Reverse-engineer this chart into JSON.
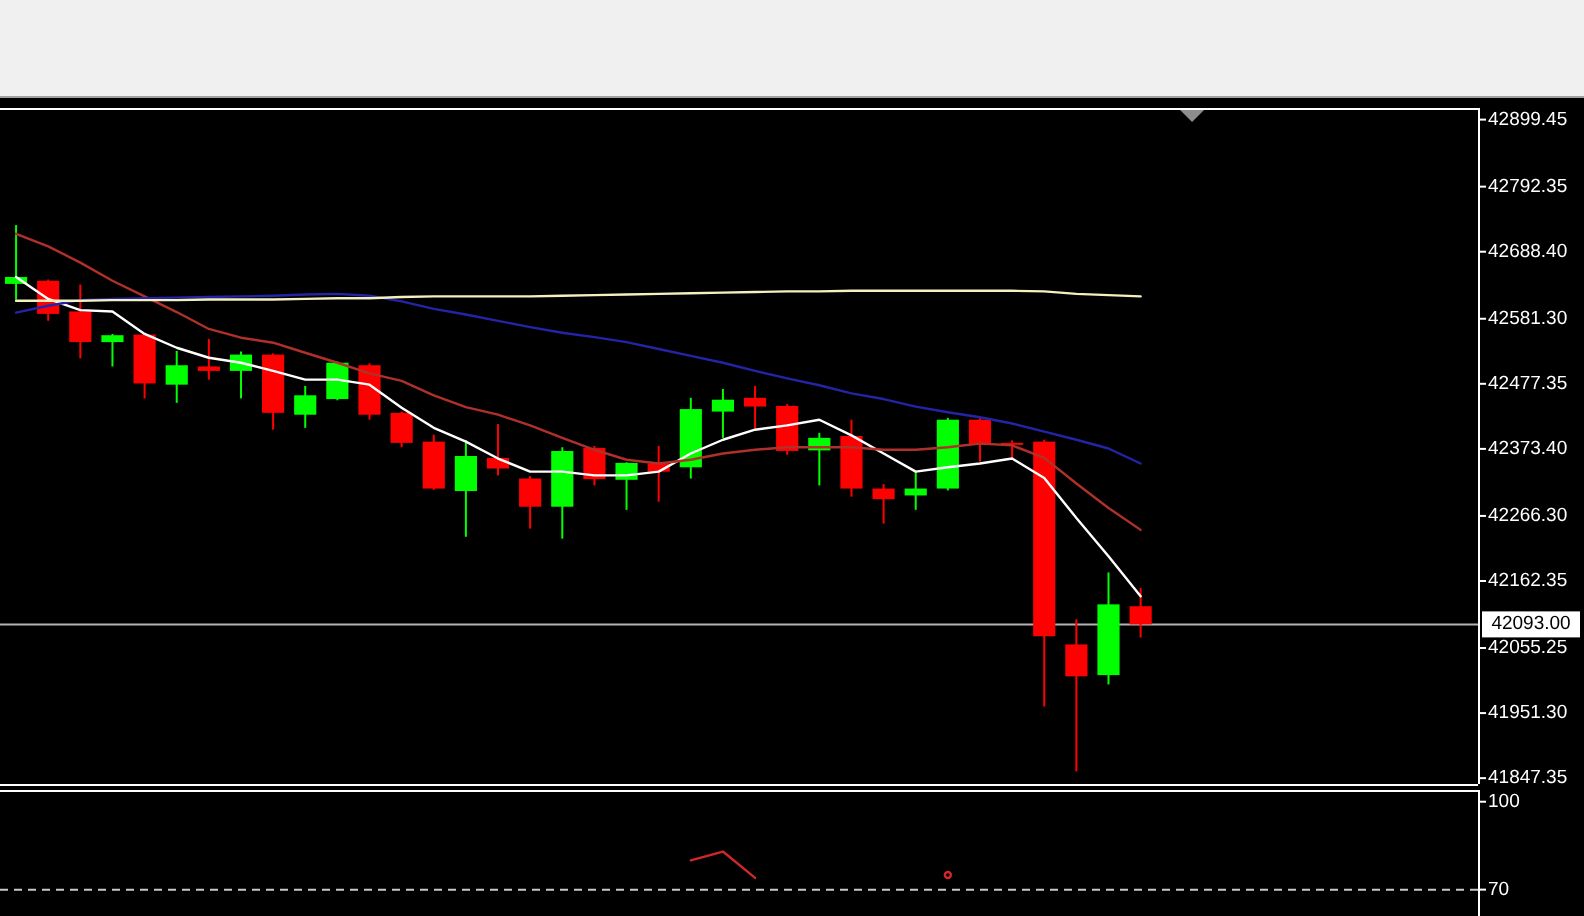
{
  "chart_data": [
    {
      "type": "candlestick",
      "categories": [
        null,
        null,
        null,
        null,
        null,
        null,
        null,
        null,
        null,
        null,
        null,
        null,
        null,
        null,
        null,
        null,
        null,
        null,
        null,
        null,
        null,
        null,
        null,
        null,
        null,
        null,
        null,
        null,
        null,
        null,
        null,
        null,
        null,
        null,
        null,
        null,
        null,
        null,
        null,
        null,
        null,
        null,
        null,
        null,
        null,
        null
      ],
      "ohlc": [
        [
          42637,
          42731,
          42612,
          42648
        ],
        [
          42642,
          42644,
          42578,
          42589
        ],
        [
          42593,
          42636,
          42518,
          42544
        ],
        [
          42544,
          42557,
          42505,
          42555
        ],
        [
          42556,
          42558,
          42454,
          42478
        ],
        [
          42476,
          42530,
          42447,
          42507
        ],
        [
          42505,
          42549,
          42484,
          42498
        ],
        [
          42498,
          42529,
          42454,
          42524
        ],
        [
          42524,
          42526,
          42404,
          42431
        ],
        [
          42428,
          42474,
          42407,
          42459
        ],
        [
          42453,
          42513,
          42451,
          42511
        ],
        [
          42507,
          42510,
          42420,
          42428
        ],
        [
          42431,
          42433,
          42376,
          42383
        ],
        [
          42385,
          42396,
          42308,
          42310
        ],
        [
          42306,
          42387,
          42233,
          42362
        ],
        [
          42359,
          42413,
          42331,
          42342
        ],
        [
          42326,
          42330,
          42246,
          42281
        ],
        [
          42281,
          42376,
          42230,
          42370
        ],
        [
          42375,
          42378,
          42315,
          42325
        ],
        [
          42324,
          42352,
          42276,
          42351
        ],
        [
          42350,
          42378,
          42289,
          42337
        ],
        [
          42344,
          42455,
          42326,
          42437
        ],
        [
          42433,
          42469,
          42391,
          42452
        ],
        [
          42455,
          42474,
          42404,
          42441
        ],
        [
          42442,
          42445,
          42364,
          42370
        ],
        [
          42371,
          42399,
          42315,
          42391
        ],
        [
          42394,
          42420,
          42297,
          42310
        ],
        [
          42310,
          42317,
          42254,
          42293
        ],
        [
          42299,
          42337,
          42276,
          42310
        ],
        [
          42310,
          42423,
          42307,
          42420
        ],
        [
          42420,
          42423,
          42353,
          42380
        ],
        [
          42383,
          42387,
          42356,
          42380
        ],
        [
          42385,
          42388,
          41962,
          42074
        ],
        [
          42061,
          42101,
          41858,
          42010
        ],
        [
          42012,
          42176,
          41997,
          42125
        ],
        [
          42122,
          42151,
          42072,
          42093
        ],
        null,
        null,
        null,
        null,
        null,
        null,
        null,
        null,
        null,
        null
      ],
      "colors": [
        "#00ff00",
        "#ff0000",
        "#ff0000",
        "#00ff00",
        "#ff0000",
        "#00ff00",
        "#ff0000",
        "#00ff00",
        "#ff0000",
        "#00ff00",
        "#00ff00",
        "#ff0000",
        "#ff0000",
        "#ff0000",
        "#00ff00",
        "#ff0000",
        "#ff0000",
        "#00ff00",
        "#ff0000",
        "#00ff00",
        "#ff0000",
        "#00ff00",
        "#00ff00",
        "#ff0000",
        "#ff0000",
        "#00ff00",
        "#ff0000",
        "#ff0000",
        "#00ff00",
        "#00ff00",
        "#ff0000",
        "#ff0000",
        "#ff0000",
        "#ff0000",
        "#00ff00",
        "#ff0000",
        null,
        null,
        null,
        null,
        null,
        null,
        null,
        null,
        null,
        null
      ],
      "series": [
        {
          "type": "line",
          "color": "#ffffff",
          "values": [
            42648,
            42613,
            42595,
            42593,
            42557,
            42535,
            42519,
            42511,
            42498,
            42484,
            42484,
            42476,
            42439,
            42407,
            42385,
            42358,
            42337,
            42337,
            42331,
            42331,
            42337,
            42366,
            42388,
            42404,
            42411,
            42420,
            42395,
            42366,
            42337,
            42344,
            42350,
            42358,
            42327,
            42263,
            42202,
            42138,
            null,
            null,
            null,
            null,
            null,
            null,
            null,
            null,
            null,
            null
          ]
        },
        {
          "type": "line",
          "color": "#b0302a",
          "values": [
            42717,
            42697,
            42671,
            42642,
            42617,
            42592,
            42565,
            42551,
            42543,
            42527,
            42511,
            42494,
            42482,
            42459,
            42440,
            42428,
            42411,
            42391,
            42372,
            42356,
            42350,
            42356,
            42366,
            42372,
            42376,
            42376,
            42376,
            42372,
            42372,
            42376,
            42382,
            42379,
            42359,
            42318,
            42279,
            42244,
            null,
            null,
            null,
            null,
            null,
            null,
            null,
            null,
            null,
            null
          ]
        },
        {
          "type": "line",
          "color": "#2424a8",
          "values": [
            42591,
            42602,
            42611,
            42613,
            42614,
            42615,
            42616,
            42617,
            42618,
            42620,
            42621,
            42618,
            42609,
            42597,
            42588,
            42578,
            42568,
            42559,
            42552,
            42544,
            42533,
            42522,
            42511,
            42498,
            42486,
            42475,
            42462,
            42453,
            42441,
            42432,
            42424,
            42414,
            42401,
            42388,
            42374,
            42350,
            null,
            null,
            null,
            null,
            null,
            null,
            null,
            null,
            null,
            null
          ]
        },
        {
          "type": "line",
          "color": "#f4f0c0",
          "values": [
            42610,
            42610,
            42610,
            42611,
            42611,
            42611,
            42612,
            42612,
            42612,
            42613,
            42614,
            42614,
            42616,
            42617,
            42617,
            42617,
            42617,
            42618,
            42619,
            42620,
            42621,
            42622,
            42623,
            42624,
            42625,
            42625,
            42626,
            42626,
            42626,
            42626,
            42626,
            42626,
            42625,
            42621,
            42619,
            42617,
            null,
            null,
            null,
            null,
            null,
            null,
            null,
            null,
            null,
            null
          ]
        }
      ],
      "ylim": [
        41838,
        42918
      ],
      "yticks": [
        42899.45,
        42792.35,
        {
          "value": 42688.4,
          "label": "42688.40"
        },
        {
          "value": 42581.3,
          "label": "42581.30"
        },
        42477.35,
        {
          "value": 42373.4,
          "label": "42373.40"
        },
        {
          "value": 42266.3,
          "label": "42266.30"
        },
        42162.35,
        42055.25,
        {
          "value": 41951.3,
          "label": "41951.30"
        },
        41847.35
      ],
      "ref_lines": [
        {
          "axis": "y",
          "value": 42093,
          "label": "42093.00",
          "color": "#b4b4b4"
        }
      ],
      "tick_labels": "y"
    },
    {
      "type": "line",
      "categories": [
        null,
        null,
        null,
        null,
        null,
        null,
        null,
        null,
        null,
        null,
        null,
        null,
        null,
        null,
        null,
        null,
        null,
        null,
        null,
        null,
        null,
        null,
        null,
        null,
        null,
        null,
        null,
        null,
        null,
        null,
        null,
        null,
        null,
        null,
        null,
        null,
        null,
        null,
        null,
        null,
        null,
        null,
        null,
        null,
        null,
        null
      ],
      "series": [
        {
          "color": "#d02828",
          "values": [
            null,
            null,
            null,
            null,
            null,
            null,
            null,
            null,
            null,
            null,
            null,
            null,
            null,
            null,
            null,
            null,
            null,
            null,
            null,
            null,
            null,
            80,
            83,
            74,
            null,
            null,
            null,
            null,
            null,
            75,
            null,
            null,
            null,
            null,
            null,
            null,
            null,
            null,
            null,
            null,
            null,
            null,
            null,
            null,
            null,
            null
          ]
        }
      ],
      "ylim": [
        61,
        104
      ],
      "yticks": [
        100,
        70
      ],
      "ref_lines": [
        {
          "axis": "y",
          "value": 70,
          "color": "#c8c8c8",
          "line_style": "dashed"
        }
      ],
      "tick_labels": "y"
    }
  ]
}
